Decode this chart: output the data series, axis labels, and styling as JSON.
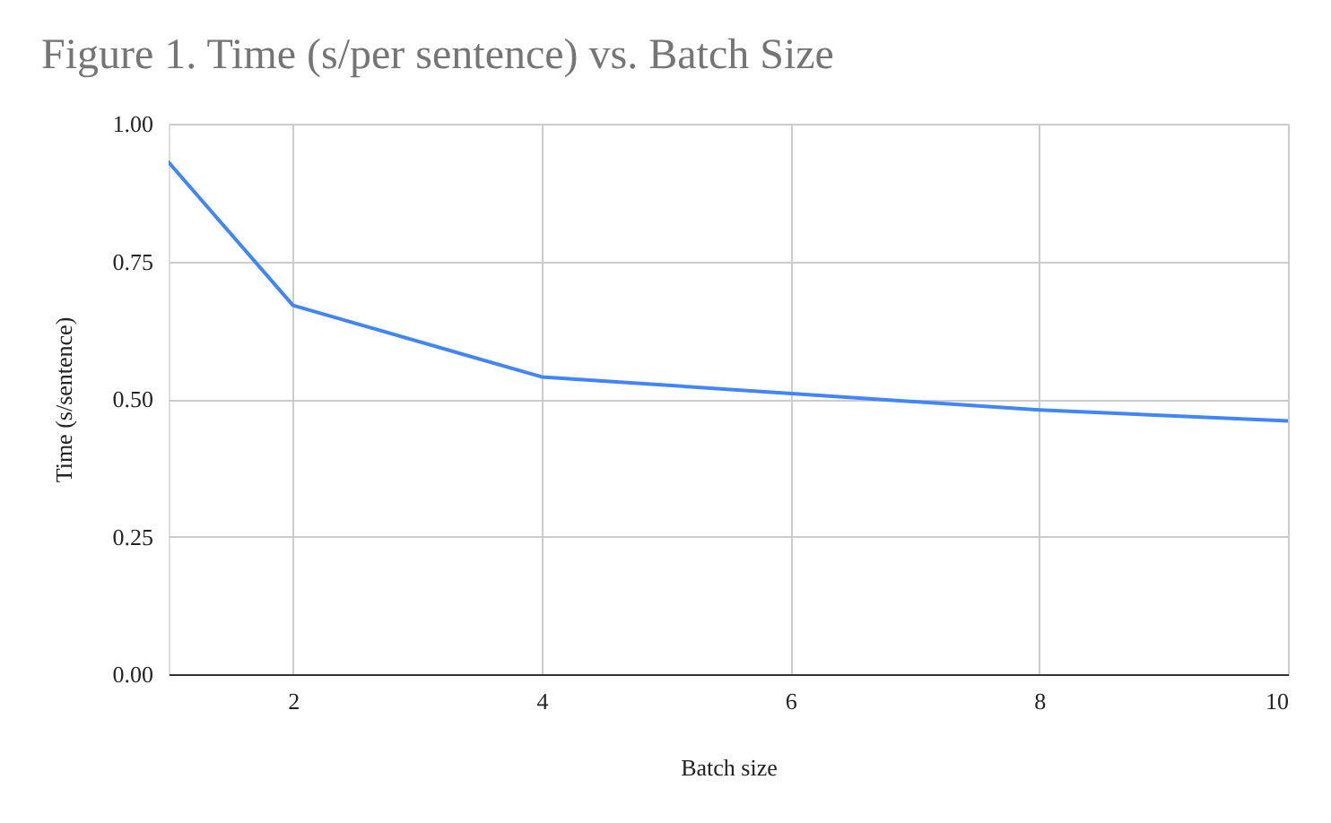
{
  "chart_data": {
    "type": "line",
    "title": "Figure 1. Time (s/per sentence) vs. Batch Size",
    "xlabel": "Batch size",
    "ylabel": "Time (s/sentence)",
    "x": [
      1,
      2,
      4,
      8,
      10
    ],
    "series": [
      {
        "color": "#4285f4",
        "values": [
          0.93,
          0.67,
          0.54,
          0.48,
          0.46
        ]
      }
    ],
    "xlim": [
      1,
      10
    ],
    "xticks": [
      2,
      4,
      6,
      8,
      10
    ],
    "ylim": [
      0,
      1
    ],
    "yticks": [
      {
        "value": 0,
        "label": "0.00"
      },
      {
        "value": 0.25,
        "label": "0.25"
      },
      {
        "value": 0.5,
        "label": "0.50"
      },
      {
        "value": 0.75,
        "label": "0.75"
      },
      {
        "value": 1,
        "label": "1.00"
      }
    ],
    "grid": true,
    "line_style": "solid"
  }
}
